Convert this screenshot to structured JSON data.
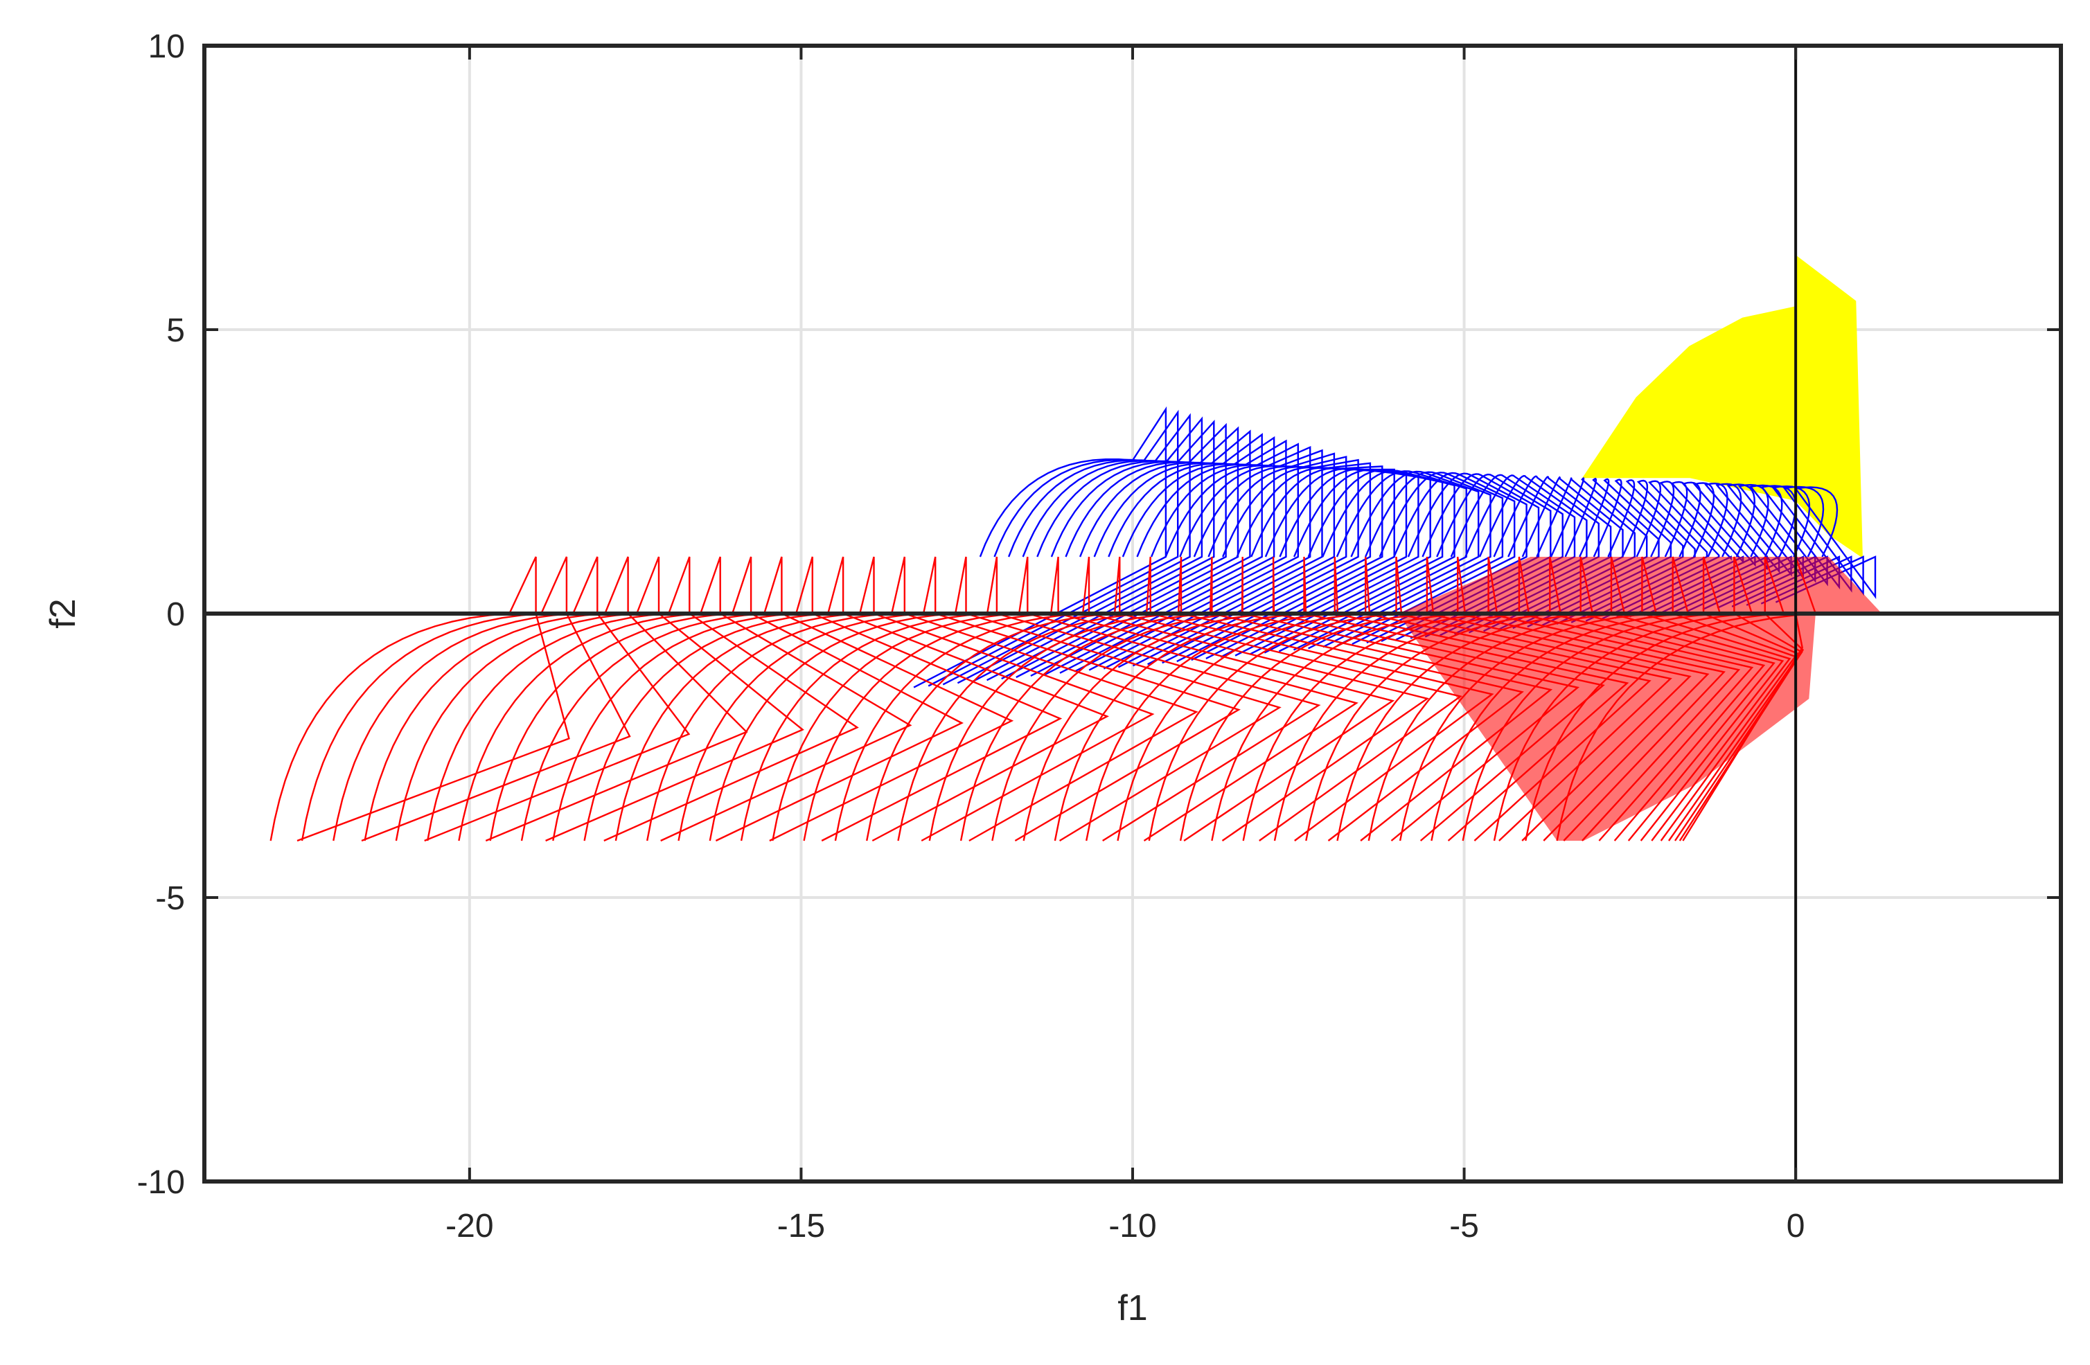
{
  "chart_data": {
    "type": "line",
    "title": "",
    "xlabel": "f1",
    "ylabel": "f2",
    "xlim": [
      -24,
      4
    ],
    "ylim": [
      -10,
      10
    ],
    "xticks": [
      -20,
      -15,
      -10,
      -5,
      0
    ],
    "xtick_labels": [
      "-20",
      "-15",
      "-10",
      "-5",
      "0"
    ],
    "yticks": [
      -10,
      -5,
      0,
      5,
      10
    ],
    "ytick_labels": [
      "-10",
      "-5",
      "0",
      "5",
      "10"
    ],
    "grid": true,
    "legend": "none",
    "reference_lines": {
      "x": 0,
      "y": 0
    },
    "series": [
      {
        "color": "#ffff00",
        "style": "filled region",
        "outline": [
          [
            -3.2,
            2.4
          ],
          [
            -2.4,
            3.8
          ],
          [
            -1.6,
            4.7
          ],
          [
            -0.8,
            5.2
          ],
          [
            0,
            5.4
          ],
          [
            0,
            6.3
          ],
          [
            0.9,
            5.5
          ],
          [
            1.0,
            1.0
          ],
          [
            0.5,
            1.4
          ],
          [
            0,
            2.0
          ],
          [
            -1.6,
            2.4
          ],
          [
            -3.2,
            2.4
          ]
        ]
      },
      {
        "color": "#0000ff",
        "style": "family of curves",
        "curve_count": 60,
        "start": {
          "x_from": -12.3,
          "x_to": 0.4,
          "y": 1.0
        },
        "peak": {
          "x_from": -10.0,
          "x_to": 0.0,
          "y_from": 2.7,
          "y_to": 2.2
        },
        "tail": {
          "x_from": -9.5,
          "x_to": 1.2,
          "y_from": 3.6,
          "y_to": 0.3
        },
        "lower": {
          "x_from": -13.3,
          "x_to": -0.3,
          "y_from": -1.3,
          "y_to": 0.2
        }
      },
      {
        "color": "#ff0000",
        "style": "family of curves",
        "curve_count": 42,
        "base_y": -4.0,
        "start_x": [
          -23.0,
          -3.6
        ],
        "top_y": 1.0,
        "top_x": [
          -19.0,
          0.0
        ],
        "zero_crossing_x": [
          -19.4,
          0.3
        ],
        "end_point": [
          1.3,
          0.0
        ]
      }
    ]
  }
}
